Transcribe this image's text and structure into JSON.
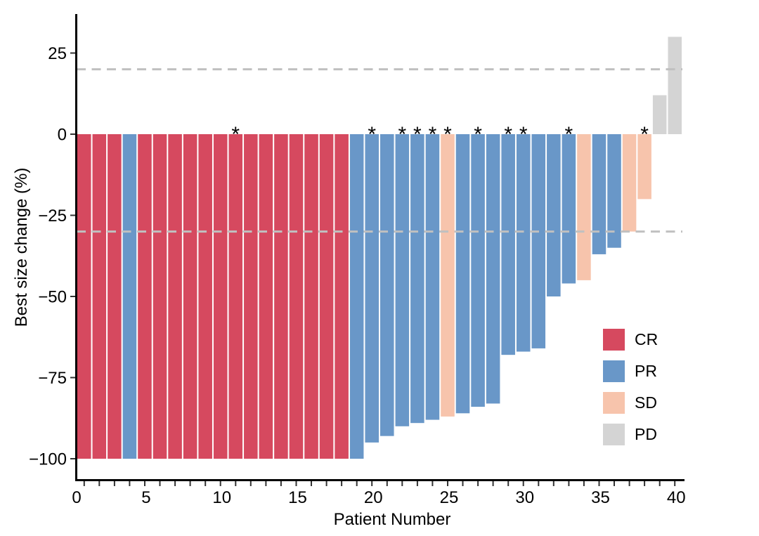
{
  "colors": {
    "CR": "#D6495F",
    "PR": "#6997C8",
    "SD": "#F7C4AC",
    "PD": "#D4D4D4",
    "axis": "#000000",
    "tick": "#333333",
    "dashed_line": "#C0C0C0",
    "text": "#000000",
    "background": "#FFFFFF"
  },
  "chart_data": {
    "type": "bar",
    "subtype": "waterfall-best-response",
    "title": "",
    "xlabel": "Patient Number",
    "ylabel": "Best size change (%)",
    "grid": false,
    "x_axis": {
      "min": 0,
      "max": 40,
      "minor_tick_every": 1,
      "labeled_ticks": [
        0,
        5,
        10,
        15,
        20,
        25,
        30,
        35,
        40
      ],
      "tick_labels": [
        "0",
        "5",
        "10",
        "15",
        "20",
        "25",
        "30",
        "35",
        "40"
      ]
    },
    "y_axis": {
      "range": [
        -107,
        37
      ],
      "ticks": [
        25,
        0,
        -25,
        -50,
        -75,
        -100
      ],
      "tick_labels": [
        "25",
        "0",
        "−25",
        "−50",
        "−75",
        "−100"
      ]
    },
    "reference_lines": [
      {
        "y": 20,
        "style": "dashed"
      },
      {
        "y": -30,
        "style": "dashed"
      }
    ],
    "legend": {
      "position": "right-lower",
      "items": [
        {
          "label": "CR",
          "response": "CR"
        },
        {
          "label": "PR",
          "response": "PR"
        },
        {
          "label": "SD",
          "response": "SD"
        },
        {
          "label": "PD",
          "response": "PD"
        }
      ]
    },
    "asterisk_symbol": "*",
    "asterisk_patients": [
      11,
      20,
      22,
      23,
      24,
      25,
      27,
      29,
      30,
      33,
      38
    ],
    "patients": [
      {
        "patient": 1,
        "value": -100,
        "response": "CR",
        "asterisk": false
      },
      {
        "patient": 2,
        "value": -100,
        "response": "CR",
        "asterisk": false
      },
      {
        "patient": 3,
        "value": -100,
        "response": "CR",
        "asterisk": false
      },
      {
        "patient": 4,
        "value": -100,
        "response": "PR",
        "asterisk": false
      },
      {
        "patient": 5,
        "value": -100,
        "response": "CR",
        "asterisk": false
      },
      {
        "patient": 6,
        "value": -100,
        "response": "CR",
        "asterisk": false
      },
      {
        "patient": 7,
        "value": -100,
        "response": "CR",
        "asterisk": false
      },
      {
        "patient": 8,
        "value": -100,
        "response": "CR",
        "asterisk": false
      },
      {
        "patient": 9,
        "value": -100,
        "response": "CR",
        "asterisk": false
      },
      {
        "patient": 10,
        "value": -100,
        "response": "CR",
        "asterisk": false
      },
      {
        "patient": 11,
        "value": -100,
        "response": "CR",
        "asterisk": true
      },
      {
        "patient": 12,
        "value": -100,
        "response": "CR",
        "asterisk": false
      },
      {
        "patient": 13,
        "value": -100,
        "response": "CR",
        "asterisk": false
      },
      {
        "patient": 14,
        "value": -100,
        "response": "CR",
        "asterisk": false
      },
      {
        "patient": 15,
        "value": -100,
        "response": "CR",
        "asterisk": false
      },
      {
        "patient": 16,
        "value": -100,
        "response": "CR",
        "asterisk": false
      },
      {
        "patient": 17,
        "value": -100,
        "response": "CR",
        "asterisk": false
      },
      {
        "patient": 18,
        "value": -100,
        "response": "CR",
        "asterisk": false
      },
      {
        "patient": 19,
        "value": -100,
        "response": "PR",
        "asterisk": false
      },
      {
        "patient": 20,
        "value": -95,
        "response": "PR",
        "asterisk": true
      },
      {
        "patient": 21,
        "value": -93,
        "response": "PR",
        "asterisk": false
      },
      {
        "patient": 22,
        "value": -90,
        "response": "PR",
        "asterisk": true
      },
      {
        "patient": 23,
        "value": -89,
        "response": "PR",
        "asterisk": true
      },
      {
        "patient": 24,
        "value": -88,
        "response": "PR",
        "asterisk": true
      },
      {
        "patient": 25,
        "value": -87,
        "response": "SD",
        "asterisk": true
      },
      {
        "patient": 26,
        "value": -86,
        "response": "PR",
        "asterisk": false
      },
      {
        "patient": 27,
        "value": -84,
        "response": "PR",
        "asterisk": true
      },
      {
        "patient": 28,
        "value": -83,
        "response": "PR",
        "asterisk": false
      },
      {
        "patient": 29,
        "value": -68,
        "response": "PR",
        "asterisk": true
      },
      {
        "patient": 30,
        "value": -67,
        "response": "PR",
        "asterisk": true
      },
      {
        "patient": 31,
        "value": -66,
        "response": "PR",
        "asterisk": false
      },
      {
        "patient": 32,
        "value": -50,
        "response": "PR",
        "asterisk": false
      },
      {
        "patient": 33,
        "value": -46,
        "response": "PR",
        "asterisk": true
      },
      {
        "patient": 34,
        "value": -45,
        "response": "SD",
        "asterisk": false
      },
      {
        "patient": 35,
        "value": -37,
        "response": "PR",
        "asterisk": false
      },
      {
        "patient": 36,
        "value": -35,
        "response": "PR",
        "asterisk": false
      },
      {
        "patient": 37,
        "value": -30,
        "response": "SD",
        "asterisk": false
      },
      {
        "patient": 38,
        "value": -20,
        "response": "SD",
        "asterisk": true
      },
      {
        "patient": 39,
        "value": 12,
        "response": "PD",
        "asterisk": false
      },
      {
        "patient": 40,
        "value": 30,
        "response": "PD",
        "asterisk": false
      }
    ]
  }
}
